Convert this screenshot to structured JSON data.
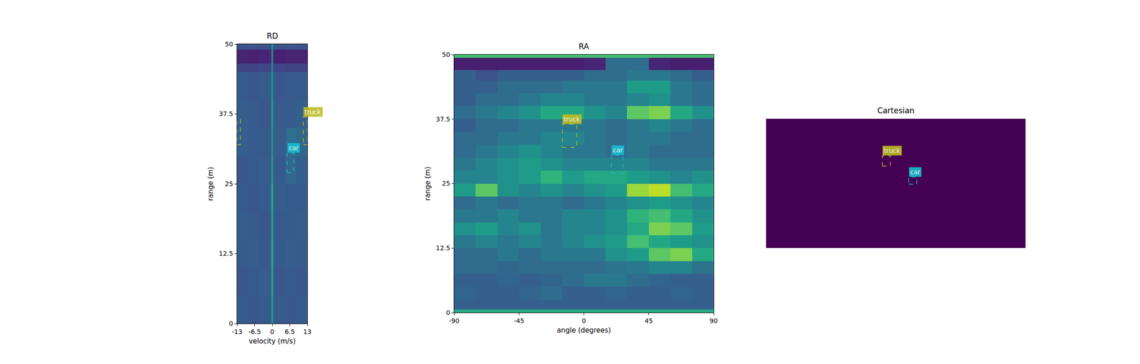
{
  "chart_data": [
    {
      "type": "heatmap",
      "title": "RD",
      "x_label": "velocity (m/s)",
      "y_label": "range (m)",
      "xlim": [
        -13,
        13
      ],
      "ylim": [
        0,
        50
      ],
      "xticks": [
        -13,
        -6.5,
        0,
        6.5,
        13
      ],
      "yticks": [
        0,
        12.5,
        25,
        37.5,
        50
      ],
      "x": [
        -13,
        -9,
        -5,
        -1,
        -0.4,
        0.4,
        1,
        5,
        9,
        13
      ],
      "y": [
        0,
        5,
        10,
        15,
        20,
        25,
        30,
        35,
        40,
        45,
        46.5,
        49,
        50
      ],
      "zlim": [
        0,
        1
      ],
      "cells": [
        [
          0.28,
          0.27,
          0.28,
          0.29,
          0.55,
          0.29,
          0.28,
          0.27,
          0.28
        ],
        [
          0.27,
          0.28,
          0.29,
          0.28,
          0.6,
          0.28,
          0.27,
          0.28,
          0.27
        ],
        [
          0.28,
          0.29,
          0.28,
          0.3,
          0.62,
          0.3,
          0.28,
          0.29,
          0.28
        ],
        [
          0.29,
          0.28,
          0.27,
          0.29,
          0.58,
          0.29,
          0.28,
          0.28,
          0.29
        ],
        [
          0.28,
          0.27,
          0.28,
          0.3,
          0.62,
          0.3,
          0.29,
          0.28,
          0.28
        ],
        [
          0.27,
          0.28,
          0.29,
          0.29,
          0.55,
          0.28,
          0.28,
          0.34,
          0.3
        ],
        [
          0.3,
          0.28,
          0.28,
          0.28,
          0.5,
          0.28,
          0.29,
          0.36,
          0.33
        ],
        [
          0.29,
          0.28,
          0.27,
          0.28,
          0.55,
          0.29,
          0.28,
          0.28,
          0.3
        ],
        [
          0.28,
          0.27,
          0.28,
          0.29,
          0.5,
          0.28,
          0.27,
          0.28,
          0.28
        ],
        [
          0.2,
          0.2,
          0.21,
          0.2,
          0.45,
          0.2,
          0.21,
          0.2,
          0.2
        ],
        [
          0.1,
          0.09,
          0.1,
          0.1,
          0.45,
          0.1,
          0.09,
          0.1,
          0.1
        ],
        [
          0.25,
          0.26,
          0.25,
          0.26,
          0.5,
          0.26,
          0.25,
          0.26,
          0.25
        ]
      ],
      "boxes": [
        {
          "label": "truck",
          "color": "#bcbd22",
          "x": [
            11.5,
            13
          ],
          "y": [
            32,
            37
          ]
        },
        {
          "color": "#bcbd22",
          "x": [
            -13,
            -11.8
          ],
          "y": [
            32,
            36.5
          ]
        },
        {
          "label": "car",
          "color": "#17becf",
          "x": [
            5.5,
            8
          ],
          "y": [
            27,
            30.5
          ]
        }
      ]
    },
    {
      "type": "heatmap",
      "title": "RA",
      "x_label": "angle (degrees)",
      "y_label": "range (m)",
      "xlim": [
        -90,
        90
      ],
      "ylim": [
        0,
        50
      ],
      "xticks": [
        -90,
        -45,
        0,
        45,
        90
      ],
      "yticks": [
        0,
        12.5,
        25,
        37.5,
        50
      ],
      "x": [
        -90,
        -75,
        -60,
        -45,
        -30,
        -15,
        0,
        15,
        30,
        45,
        60,
        75,
        90
      ],
      "y": [
        0,
        0.6,
        2.5,
        5,
        7.5,
        10,
        12.5,
        15,
        17.5,
        20,
        22.5,
        25,
        27.5,
        30,
        32.5,
        35,
        37.5,
        40,
        42.5,
        45,
        47,
        49.4,
        50
      ],
      "zlim": [
        0,
        1
      ],
      "cells": [
        [
          0.6,
          0.6,
          0.6,
          0.6,
          0.6,
          0.6,
          0.6,
          0.6,
          0.6,
          0.6,
          0.6,
          0.6
        ],
        [
          0.3,
          0.3,
          0.3,
          0.3,
          0.3,
          0.3,
          0.3,
          0.3,
          0.3,
          0.3,
          0.3,
          0.3
        ],
        [
          0.32,
          0.3,
          0.3,
          0.32,
          0.35,
          0.3,
          0.3,
          0.32,
          0.3,
          0.3,
          0.32,
          0.3
        ],
        [
          0.3,
          0.3,
          0.32,
          0.3,
          0.32,
          0.35,
          0.4,
          0.4,
          0.35,
          0.32,
          0.3,
          0.3
        ],
        [
          0.35,
          0.35,
          0.33,
          0.35,
          0.35,
          0.35,
          0.35,
          0.38,
          0.4,
          0.45,
          0.45,
          0.38
        ],
        [
          0.35,
          0.35,
          0.4,
          0.35,
          0.4,
          0.4,
          0.4,
          0.5,
          0.55,
          0.75,
          0.8,
          0.6
        ],
        [
          0.4,
          0.45,
          0.4,
          0.45,
          0.4,
          0.45,
          0.5,
          0.55,
          0.7,
          0.6,
          0.55,
          0.5
        ],
        [
          0.5,
          0.55,
          0.45,
          0.5,
          0.4,
          0.45,
          0.45,
          0.5,
          0.6,
          0.8,
          0.75,
          0.55
        ],
        [
          0.4,
          0.4,
          0.45,
          0.4,
          0.4,
          0.45,
          0.45,
          0.5,
          0.65,
          0.7,
          0.6,
          0.5
        ],
        [
          0.35,
          0.4,
          0.35,
          0.4,
          0.4,
          0.35,
          0.4,
          0.45,
          0.5,
          0.55,
          0.5,
          0.45
        ],
        [
          0.55,
          0.75,
          0.5,
          0.45,
          0.5,
          0.45,
          0.5,
          0.55,
          0.85,
          0.9,
          0.7,
          0.6
        ],
        [
          0.45,
          0.45,
          0.5,
          0.55,
          0.65,
          0.55,
          0.6,
          0.6,
          0.55,
          0.5,
          0.45,
          0.5
        ],
        [
          0.4,
          0.45,
          0.5,
          0.55,
          0.5,
          0.45,
          0.45,
          0.45,
          0.45,
          0.4,
          0.4,
          0.4
        ],
        [
          0.35,
          0.4,
          0.45,
          0.5,
          0.45,
          0.4,
          0.4,
          0.35,
          0.4,
          0.35,
          0.35,
          0.35
        ],
        [
          0.35,
          0.35,
          0.4,
          0.4,
          0.45,
          0.45,
          0.4,
          0.35,
          0.4,
          0.4,
          0.35,
          0.35
        ],
        [
          0.3,
          0.35,
          0.35,
          0.4,
          0.4,
          0.4,
          0.4,
          0.35,
          0.4,
          0.45,
          0.4,
          0.35
        ],
        [
          0.35,
          0.4,
          0.45,
          0.5,
          0.6,
          0.6,
          0.5,
          0.45,
          0.75,
          0.8,
          0.6,
          0.5
        ],
        [
          0.3,
          0.35,
          0.35,
          0.4,
          0.45,
          0.45,
          0.4,
          0.4,
          0.45,
          0.5,
          0.4,
          0.35
        ],
        [
          0.3,
          0.3,
          0.35,
          0.35,
          0.35,
          0.4,
          0.4,
          0.4,
          0.55,
          0.55,
          0.4,
          0.35
        ],
        [
          0.3,
          0.25,
          0.3,
          0.3,
          0.3,
          0.3,
          0.35,
          0.35,
          0.4,
          0.4,
          0.35,
          0.3
        ],
        [
          0.08,
          0.08,
          0.08,
          0.08,
          0.08,
          0.08,
          0.1,
          0.35,
          0.35,
          0.1,
          0.08,
          0.08
        ],
        [
          0.7,
          0.7,
          0.7,
          0.7,
          0.7,
          0.7,
          0.7,
          0.7,
          0.7,
          0.7,
          0.7,
          0.7
        ]
      ],
      "boxes": [
        {
          "label": "truck",
          "color": "#bcbd22",
          "x": [
            -15,
            -5
          ],
          "y": [
            32,
            36.5
          ]
        },
        {
          "label": "car",
          "color": "#17becf",
          "x": [
            19,
            27
          ],
          "y": [
            27,
            30.5
          ]
        }
      ]
    },
    {
      "type": "heatmap",
      "title": "Cartesian",
      "tick_labels": false,
      "xlim": [
        -50,
        50
      ],
      "ylim": [
        0,
        50
      ],
      "x": [
        -50,
        50
      ],
      "y": [
        0,
        50
      ],
      "zlim": [
        0,
        1
      ],
      "cells": [
        [
          0
        ]
      ],
      "boxes": [
        {
          "label": "truck",
          "color": "#bcbd22",
          "x": [
            -5.2,
            -2.1
          ],
          "y": [
            31.7,
            35.7
          ]
        },
        {
          "label": "car",
          "color": "#17becf",
          "x": [
            5,
            8.1
          ],
          "y": [
            24.7,
            27.5
          ]
        }
      ]
    }
  ]
}
